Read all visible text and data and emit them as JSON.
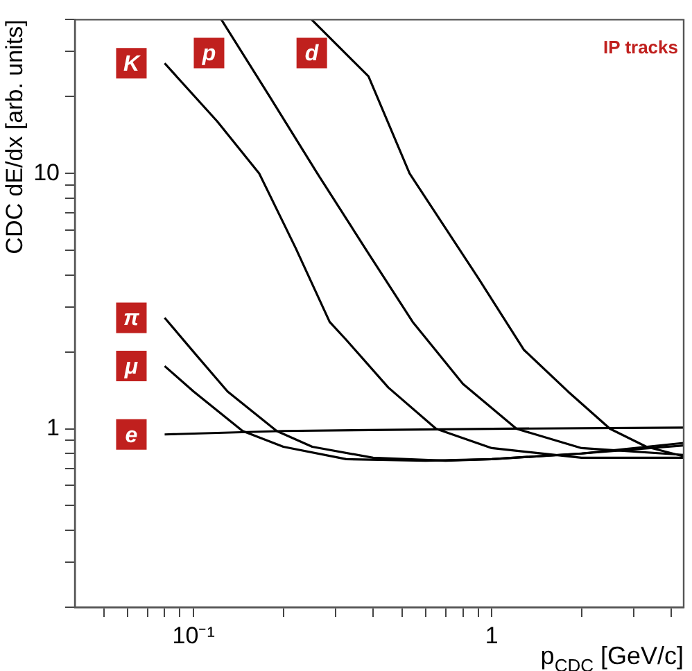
{
  "chart_data": {
    "type": "line",
    "xlabel": "p$_{CDC}$ [GeV/c]",
    "ylabel": "CDC dE/dx [arb. units]",
    "log": "xy",
    "grid": false,
    "legend": false,
    "marker": "none",
    "line_style": "solid",
    "xlim": [
      0.04,
      4.4
    ],
    "ylim": [
      0.2,
      40
    ],
    "xticks": [
      {
        "value": 0.05,
        "label": null
      },
      {
        "value": 0.06,
        "label": null
      },
      {
        "value": 0.07,
        "label": null
      },
      {
        "value": 0.08,
        "label": null
      },
      {
        "value": 0.09,
        "label": null
      },
      {
        "value": 0.1,
        "label": "10⁻¹"
      },
      {
        "value": 0.2,
        "label": null
      },
      {
        "value": 0.3,
        "label": null
      },
      {
        "value": 0.4,
        "label": null
      },
      {
        "value": 0.5,
        "label": null
      },
      {
        "value": 0.6,
        "label": null
      },
      {
        "value": 0.7,
        "label": null
      },
      {
        "value": 0.8,
        "label": null
      },
      {
        "value": 0.9,
        "label": null
      },
      1,
      {
        "value": 2,
        "label": null
      },
      {
        "value": 3,
        "label": null
      },
      {
        "value": 4,
        "label": null
      }
    ],
    "yticks": [
      {
        "value": 0.2,
        "label": null
      },
      {
        "value": 0.3,
        "label": null
      },
      {
        "value": 0.4,
        "label": null
      },
      {
        "value": 0.5,
        "label": null
      },
      {
        "value": 0.6,
        "label": null
      },
      {
        "value": 0.7,
        "label": null
      },
      {
        "value": 0.8,
        "label": null
      },
      {
        "value": 0.9,
        "label": null
      },
      1,
      {
        "value": 2,
        "label": null
      },
      {
        "value": 3,
        "label": null
      },
      {
        "value": 4,
        "label": null
      },
      {
        "value": 5,
        "label": null
      },
      {
        "value": 6,
        "label": null
      },
      {
        "value": 7,
        "label": null
      },
      {
        "value": 8,
        "label": null
      },
      {
        "value": 9,
        "label": null
      },
      10,
      {
        "value": 20,
        "label": null
      },
      {
        "value": 30,
        "label": null
      },
      {
        "value": 40,
        "label": null
      }
    ],
    "series": [
      {
        "name": "e",
        "color": "#000000",
        "x": [
          0.08,
          0.2,
          1,
          4.4
        ],
        "values": [
          0.95,
          0.98,
          1.0,
          1.01
        ]
      },
      {
        "name": "μ",
        "color": "#000000",
        "x": [
          0.08,
          0.1,
          0.146,
          0.2,
          0.325,
          0.6,
          1,
          2,
          4.4
        ],
        "values": [
          1.76,
          1.4,
          0.98,
          0.85,
          0.76,
          0.75,
          0.76,
          0.8,
          0.86
        ]
      },
      {
        "name": "π",
        "color": "#000000",
        "x": [
          0.08,
          0.1,
          0.13,
          0.19,
          0.25,
          0.4,
          0.7,
          1,
          2,
          4.4
        ],
        "values": [
          2.72,
          2.0,
          1.4,
          0.98,
          0.85,
          0.77,
          0.75,
          0.76,
          0.8,
          0.88
        ]
      },
      {
        "name": "K",
        "color": "#000000",
        "x": [
          0.08,
          0.12,
          0.166,
          0.22,
          0.286,
          0.325,
          0.45,
          0.65,
          1,
          2,
          4.4
        ],
        "values": [
          27,
          16,
          10,
          5.1,
          2.62,
          2.23,
          1.45,
          1.0,
          0.84,
          0.77,
          0.77
        ]
      },
      {
        "name": "p",
        "color": "#000000",
        "x": [
          0.124,
          0.18,
          0.26,
          0.38,
          0.543,
          0.8,
          1.21,
          2,
          4.4
        ],
        "values": [
          40,
          20,
          10,
          5,
          2.62,
          1.5,
          1.0,
          0.84,
          0.79
        ]
      },
      {
        "name": "d",
        "color": "#000000",
        "x": [
          0.249,
          0.386,
          0.53,
          0.9,
          1.28,
          1.8,
          2.49,
          3.3,
          4.4
        ],
        "values": [
          40,
          24,
          10,
          3.9,
          2.04,
          1.4,
          1.0,
          0.85,
          0.78
        ]
      }
    ],
    "annotations": [
      "IP tracks"
    ]
  }
}
